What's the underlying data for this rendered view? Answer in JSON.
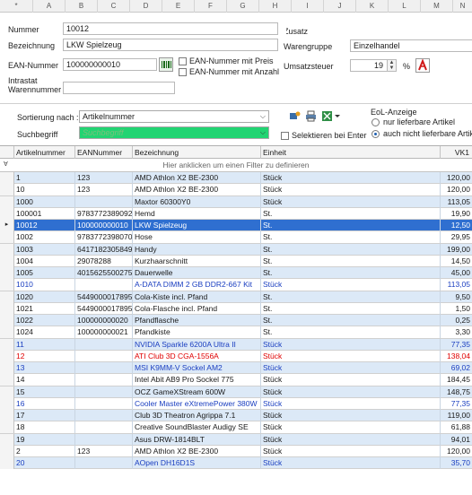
{
  "columns": [
    "*",
    "A",
    "B",
    "C",
    "D",
    "E",
    "F",
    "G",
    "H",
    "I",
    "J",
    "K",
    "L",
    "M",
    "N"
  ],
  "form": {
    "nummer_label": "Nummer",
    "nummer_value": "10012",
    "bezeichnung_label": "Bezeichnung",
    "bezeichnung_value": "LKW Spielzeug",
    "ean_label": "EAN-Nummer",
    "ean_value": "100000000010",
    "ean_preis_label": "EAN-Nummer mit Preis",
    "ean_anzahl_label": "EAN-Nummer mit Anzahl",
    "intrastat_label": "Intrastat\nWarennummer",
    "intrastat_label_1": "Intrastat",
    "intrastat_label_2": "Warennummer",
    "intrastat_value": "",
    "zusatz_label": "Zusatz",
    "zusatz_value": "",
    "warengruppe_label": "Warengruppe",
    "warengruppe_value": "Einzelhandel",
    "umsatzsteuer_label": "Umsatzsteuer",
    "umsatzsteuer_value": "19",
    "percent_sign": "%"
  },
  "filter": {
    "sortierung_label": "Sortierung nach :",
    "sortierung_value": "Artikelnummer",
    "suchbegriff_label": "Suchbegriff",
    "suchbegriff_placeholder": "Suchbegriff",
    "selektieren_label": "Selektieren bei Enter",
    "eol_title": "EoL-Anzeige",
    "eol_option1": "nur lieferbare Artikel",
    "eol_option2": "auch nicht lieferbare Artikel",
    "eol_selected": 2
  },
  "grid": {
    "headers": [
      "Artikelnummer",
      "EANNummer",
      "Bezeichnung",
      "Einheit",
      "VK1"
    ],
    "filter_hint": "Hier anklicken um einen Filter zu definieren",
    "rows": [
      {
        "nr": "1",
        "ean": "123",
        "bez": "AMD Athlon X2 BE-2300",
        "einheit": "Stück",
        "vk": "120,00",
        "style": "alt"
      },
      {
        "nr": "10",
        "ean": "123",
        "bez": "AMD Athlon X2 BE-2300",
        "einheit": "Stück",
        "vk": "120,00",
        "style": ""
      },
      {
        "nr": "1000",
        "ean": "",
        "bez": "Maxtor 60300Y0",
        "einheit": "Stück",
        "vk": "113,05",
        "style": "alt"
      },
      {
        "nr": "100001",
        "ean": "9783772389092",
        "bez": "Hemd",
        "einheit": "St.",
        "vk": "19,90",
        "style": ""
      },
      {
        "nr": "10012",
        "ean": "100000000010",
        "bez": "LKW Spielzeug",
        "einheit": "St.",
        "vk": "12,50",
        "style": "sel"
      },
      {
        "nr": "1002",
        "ean": "9783772398070",
        "bez": "Hose",
        "einheit": "St.",
        "vk": "29,95",
        "style": ""
      },
      {
        "nr": "1003",
        "ean": "6417182305849",
        "bez": "Handy",
        "einheit": "St.",
        "vk": "199,00",
        "style": "alt"
      },
      {
        "nr": "1004",
        "ean": "29078288",
        "bez": "Kurzhaarschnitt",
        "einheit": "St.",
        "vk": "14,50",
        "style": ""
      },
      {
        "nr": "1005",
        "ean": "4015625500275",
        "bez": "Dauerwelle",
        "einheit": "St.",
        "vk": "45,00",
        "style": "alt"
      },
      {
        "nr": "1010",
        "ean": "",
        "bez": "A-DATA DIMM 2 GB DDR2-667 Kit",
        "einheit": "Stück",
        "vk": "113,05",
        "style": "blue"
      },
      {
        "nr": "1020",
        "ean": "5449000017895",
        "bez": "Cola-Kiste incl. Pfand",
        "einheit": "St.",
        "vk": "9,50",
        "style": "alt"
      },
      {
        "nr": "1021",
        "ean": "5449000017895",
        "bez": "Cola-Flasche incl. Pfand",
        "einheit": "St.",
        "vk": "1,50",
        "style": ""
      },
      {
        "nr": "1022",
        "ean": "100000000020",
        "bez": "Pfandflasche",
        "einheit": "St.",
        "vk": "0,25",
        "style": "alt"
      },
      {
        "nr": "1024",
        "ean": "100000000021",
        "bez": "Pfandkiste",
        "einheit": "St.",
        "vk": "3,30",
        "style": ""
      },
      {
        "nr": "11",
        "ean": "",
        "bez": "NVIDIA Sparkle 6200A Ultra II",
        "einheit": "Stück",
        "vk": "77,35",
        "style": "alt blue"
      },
      {
        "nr": "12",
        "ean": "",
        "bez": "ATI Club 3D CGA-1556A",
        "einheit": "Stück",
        "vk": "138,04",
        "style": "red"
      },
      {
        "nr": "13",
        "ean": "",
        "bez": "MSI K9MM-V Sockel AM2",
        "einheit": "Stück",
        "vk": "69,02",
        "style": "alt blue"
      },
      {
        "nr": "14",
        "ean": "",
        "bez": "Intel Abit AB9 Pro Sockel 775",
        "einheit": "Stück",
        "vk": "184,45",
        "style": ""
      },
      {
        "nr": "15",
        "ean": "",
        "bez": "OCZ GameXStream 600W",
        "einheit": "Stück",
        "vk": "148,75",
        "style": "alt"
      },
      {
        "nr": "16",
        "ean": "",
        "bez": "Cooler Master eXtremePower 380W",
        "einheit": "Stück",
        "vk": "77,35",
        "style": "blue"
      },
      {
        "nr": "17",
        "ean": "",
        "bez": "Club 3D Theatron Agrippa 7.1",
        "einheit": "Stück",
        "vk": "119,00",
        "style": "alt"
      },
      {
        "nr": "18",
        "ean": "",
        "bez": "Creative SoundBlaster Audigy SE",
        "einheit": "Stück",
        "vk": "61,88",
        "style": ""
      },
      {
        "nr": "19",
        "ean": "",
        "bez": "Asus DRW-1814BLT",
        "einheit": "Stück",
        "vk": "94,01",
        "style": "alt"
      },
      {
        "nr": "2",
        "ean": "123",
        "bez": "AMD Athlon X2 BE-2300",
        "einheit": "Stück",
        "vk": "120,00",
        "style": ""
      },
      {
        "nr": "20",
        "ean": "",
        "bez": "AOpen DH16D1S",
        "einheit": "Stück",
        "vk": "35,70",
        "style": "alt blue"
      }
    ]
  }
}
